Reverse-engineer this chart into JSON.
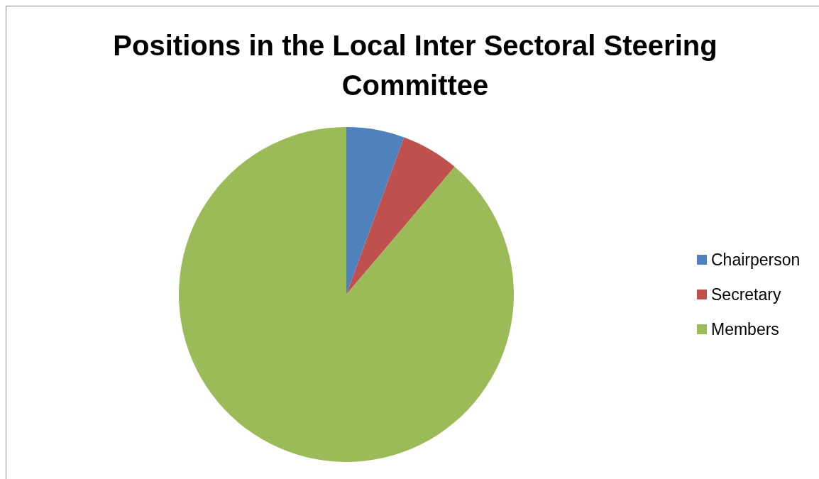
{
  "chart_data": {
    "type": "pie",
    "title": "Positions in the Local Inter Sectoral Steering Committee",
    "categories": [
      "Chairperson",
      "Secretary",
      "Members"
    ],
    "values": [
      5.6,
      5.6,
      88.8
    ],
    "colors": [
      "#4f81bd",
      "#c0504d",
      "#9bbb59"
    ],
    "legend": "right"
  }
}
